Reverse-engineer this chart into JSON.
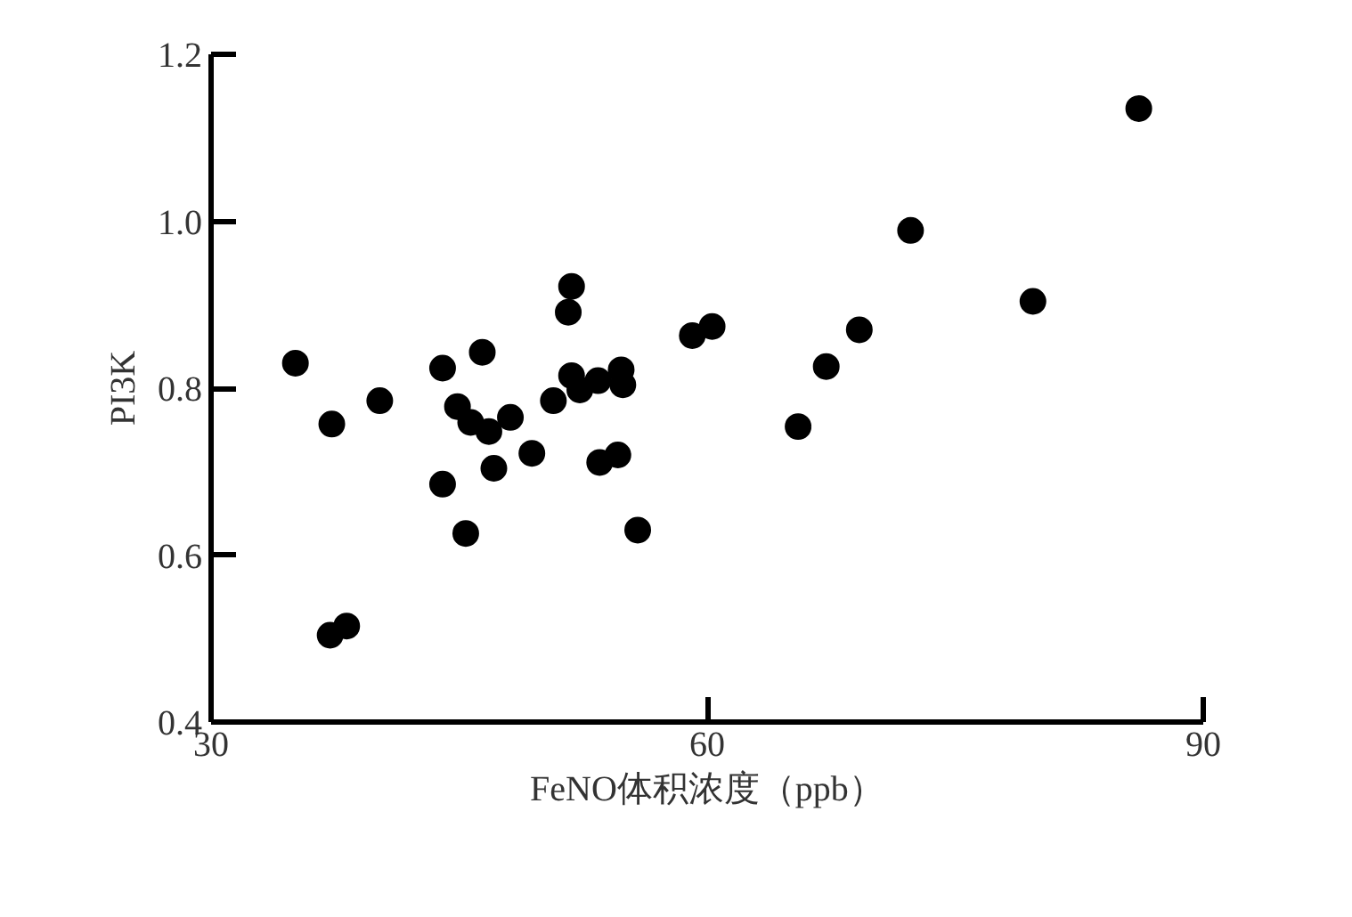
{
  "chart_data": {
    "type": "scatter",
    "xlabel": "FeNO体积浓度（ppb）",
    "ylabel": "PI3K",
    "xlim": [
      30,
      90
    ],
    "xticks": [
      30,
      60,
      90
    ],
    "ylim": [
      0.4,
      1.2
    ],
    "yticks": [
      {
        "value": 0.4,
        "label": "0.4"
      },
      {
        "value": 0.6,
        "label": "0.6"
      },
      {
        "value": 0.8,
        "label": "0.8"
      },
      {
        "value": 1.0,
        "label": "1.0"
      },
      {
        "value": 1.2,
        "label": "1.2"
      }
    ],
    "grid": false,
    "marker": "circle",
    "series": [
      {
        "color": "#000000",
        "x": [
          35.1,
          37.3,
          37.2,
          38.2,
          40.2,
          44.0,
          44.0,
          44.9,
          45.4,
          45.7,
          46.4,
          46.8,
          47.1,
          48.1,
          49.4,
          50.7,
          51.8,
          51.6,
          51.8,
          52.3,
          53.4,
          54.8,
          54.9,
          53.5,
          54.6,
          55.8,
          59.1,
          60.3,
          65.5,
          67.2,
          69.2,
          72.3,
          79.7,
          86.1
        ],
        "values": [
          0.83,
          0.757,
          0.504,
          0.515,
          0.785,
          0.824,
          0.685,
          0.778,
          0.626,
          0.759,
          0.843,
          0.748,
          0.704,
          0.765,
          0.722,
          0.785,
          0.922,
          0.891,
          0.815,
          0.798,
          0.809,
          0.822,
          0.804,
          0.711,
          0.72,
          0.63,
          0.863,
          0.874,
          0.754,
          0.826,
          0.87,
          0.989,
          0.904,
          1.135
        ]
      }
    ]
  }
}
